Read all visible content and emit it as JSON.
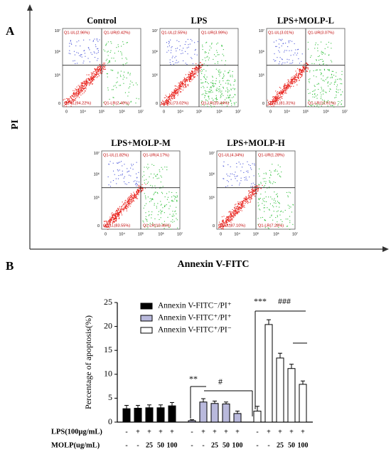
{
  "panel_a": {
    "label": "A",
    "y_axis_label": "PI",
    "x_axis_label": "Annexin V-FITC",
    "x_tick_labels": [
      "0",
      "10⁴",
      "10⁵",
      "10⁶",
      "10⁷"
    ],
    "y_tick_labels": [
      "0",
      "10⁵",
      "10⁶",
      "10⁷"
    ],
    "plots": [
      {
        "title": "Control",
        "quadrants": [
          "Q1-UL(2.96%)",
          "Q1-UR(0.42%)",
          "Q1-LL(94.22%)",
          "Q1-LR(2.40%)"
        ]
      },
      {
        "title": "LPS",
        "quadrants": [
          "Q1-UL(2.55%)",
          "Q1-UR(3.99%)",
          "Q1-LL(73.02%)",
          "Q1-LR(20.44%)"
        ]
      },
      {
        "title": "LPS+MOLP-L",
        "quadrants": [
          "Q1-UL(3.01%)",
          "Q1-UR(3.07%)",
          "Q1-LL(81.31%)",
          "Q1-LR(12.61%)"
        ]
      },
      {
        "title": "LPS+MOLP-M",
        "quadrants": [
          "Q1-UL(1.82%)",
          "Q1-UR(4.17%)",
          "Q1-LL(83.55%)",
          "Q1-LR(10.46%)"
        ]
      },
      {
        "title": "LPS+MOLP-H",
        "quadrants": [
          "Q1-UL(4.34%)",
          "Q1-UR(1.28%)",
          "Q1-LL(87.10%)",
          "Q1-LR(7.28%)"
        ]
      }
    ]
  },
  "chart_data": {
    "type": "bar",
    "panel_label": "B",
    "y_label": "Percentage of apoptosis(%)",
    "ylim": [
      0,
      25
    ],
    "yticks": [
      0,
      5,
      10,
      15,
      20,
      25
    ],
    "row_labels": [
      "LPS(100μg/mL)",
      "MOLP(ug/mL)"
    ],
    "rows": [
      [
        "-",
        "+",
        "+",
        "+",
        "+",
        "-",
        "+",
        "+",
        "+",
        "+",
        "-",
        "+",
        "+",
        "+",
        "+"
      ],
      [
        "-",
        "-",
        "25",
        "50",
        "100",
        "-",
        "-",
        "25",
        "50",
        "100",
        "-",
        "-",
        "25",
        "50",
        "100"
      ]
    ],
    "series": [
      {
        "name": "Annexin V-FITC⁻/PI⁺",
        "color": "#000000",
        "values": [
          2.8,
          2.9,
          3.0,
          3.0,
          3.4
        ],
        "errors": [
          0.7,
          0.6,
          0.6,
          0.6,
          0.7
        ]
      },
      {
        "name": "Annexin V-FITC⁺/PI⁺",
        "color": "#b9b9dc",
        "values": [
          0.3,
          4.2,
          3.9,
          3.8,
          1.8
        ],
        "errors": [
          0.2,
          0.7,
          0.5,
          0.4,
          0.5
        ]
      },
      {
        "name": "Annexin V-FITC⁺/PI⁻",
        "color": "#ffffff",
        "values": [
          2.3,
          20.4,
          13.4,
          11.2,
          7.9
        ],
        "errors": [
          1.0,
          1.0,
          1.0,
          0.9,
          0.7
        ]
      }
    ],
    "annotations": [
      "**",
      "#",
      "***",
      "###"
    ]
  }
}
